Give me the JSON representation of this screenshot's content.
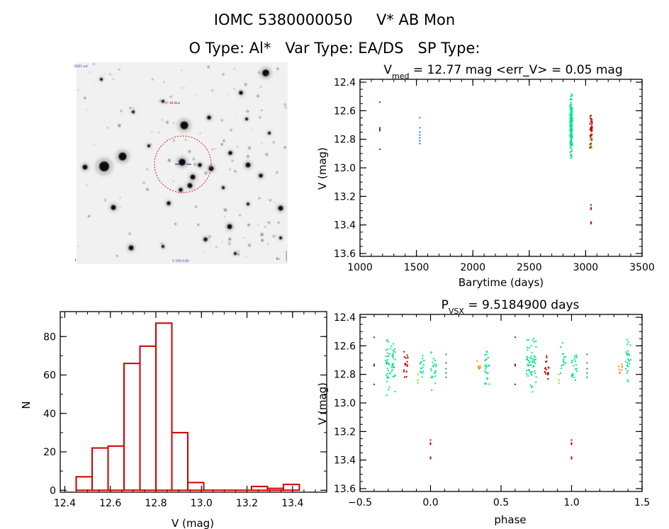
{
  "header": {
    "title": "IOMC 5380000050     V* AB Mon",
    "subtitle": "O Type: Al*   Var Type: EA/DS   SP Type:"
  },
  "finder": {
    "top_left_label": "DSS1 red",
    "target_label": "V* AB Mon",
    "bottom_left_label": "1'",
    "bottom_center_label": "1' FOV 6.65'",
    "bottom_right_label": "E←"
  },
  "colors": {
    "axis": "#000000",
    "histogram": "#cc0000",
    "finder_circle": "#dd0000",
    "season_1": "#6a0dad",
    "season_2": "#1f77d4",
    "season_3": "#00e68a",
    "season_4": "#c00000",
    "season_5": "#7fdc1e",
    "season_6": "#ff8c00"
  },
  "chart_data": [
    {
      "type": "scatter",
      "panel": "lightcurve",
      "title_main": "V",
      "title_sub": "med",
      "title_rest": " = 12.77 mag <err_V> = 0.05 mag",
      "xlabel": "Barytime (days)",
      "ylabel": "V (mag)",
      "xlim": [
        1000,
        3500
      ],
      "ylim": [
        13.62,
        12.38
      ],
      "xticks": [
        1000,
        1500,
        2000,
        2500,
        3000,
        3500
      ],
      "yticks": [
        12.4,
        12.6,
        12.8,
        13.0,
        13.2,
        13.4,
        13.6
      ],
      "series": [
        {
          "color_key": "season_1",
          "x": [
            1175,
            1175,
            1175,
            1175,
            1175
          ],
          "y": [
            12.54,
            12.72,
            12.73,
            12.74,
            12.87
          ]
        },
        {
          "color_key": "season_2",
          "x": [
            1530,
            1530,
            1530,
            1530,
            1530,
            1530,
            1530
          ],
          "y": [
            12.65,
            12.72,
            12.75,
            12.77,
            12.79,
            12.81,
            12.83
          ]
        },
        {
          "color_key": "season_3",
          "x_range": [
            2862,
            2882
          ],
          "y_range": [
            12.44,
            12.98
          ],
          "count": 160
        },
        {
          "color_key": "season_4",
          "x_range": [
            3038,
            3058
          ],
          "y_range": [
            12.58,
            12.89
          ],
          "count": 45,
          "x_extra": [
            3048,
            3048,
            3048,
            3048,
            3048
          ],
          "y_extra": [
            13.26,
            13.28,
            13.29,
            13.38,
            13.39
          ]
        },
        {
          "color_key": "season_5",
          "x": [
            3048,
            3050,
            3052
          ],
          "y": [
            12.8,
            12.84,
            12.86
          ]
        },
        {
          "color_key": "season_6",
          "x": [
            3047,
            3051
          ],
          "y": [
            12.76,
            12.79
          ]
        }
      ]
    },
    {
      "type": "bar",
      "panel": "histogram",
      "xlabel": "V (mag)",
      "ylabel": "N",
      "bin_edges": [
        12.45,
        12.52,
        12.59,
        12.66,
        12.73,
        12.8,
        12.87,
        12.94,
        13.01,
        13.08,
        13.15,
        13.22,
        13.29,
        13.36,
        13.43
      ],
      "values": [
        7,
        22,
        23,
        66,
        75,
        87,
        30,
        4,
        0,
        0,
        0,
        2,
        1,
        3
      ],
      "xlim": [
        12.38,
        13.55
      ],
      "ylim": [
        -1,
        93
      ],
      "xticks": [
        12.4,
        12.6,
        12.8,
        13.0,
        13.2,
        13.4
      ],
      "xtick_labels": [
        "12.4",
        "12.6",
        "12.8",
        "13.0",
        "13.2",
        "13.4"
      ],
      "yticks": [
        0,
        20,
        40,
        60,
        80
      ]
    },
    {
      "type": "scatter",
      "panel": "phased",
      "title_main": "P",
      "title_sub": "VSX",
      "title_rest": " = 9.5184900 days",
      "xlabel": "phase",
      "ylabel": "V (mag)",
      "xlim": [
        -0.5,
        1.5
      ],
      "ylim": [
        13.62,
        12.38
      ],
      "xticks": [
        -0.5,
        0.0,
        0.5,
        1.0,
        1.5
      ],
      "xtick_labels": [
        "−0.5",
        "0.0",
        "0.5",
        "1.0",
        "1.5"
      ],
      "yticks": [
        12.4,
        12.6,
        12.8,
        13.0,
        13.2,
        13.4,
        13.6
      ],
      "clusters": [
        {
          "color_key": "season_1",
          "x": -0.4,
          "y": [
            12.54,
            12.73,
            12.74,
            12.87
          ]
        },
        {
          "color_key": "season_3",
          "x_range": [
            -0.32,
            -0.25
          ],
          "y_range": [
            12.48,
            12.98
          ],
          "count": 60
        },
        {
          "color_key": "season_3",
          "x_range": [
            -0.08,
            -0.04
          ],
          "y_range": [
            12.52,
            12.9
          ],
          "count": 16
        },
        {
          "color_key": "season_3",
          "x_range": [
            0.0,
            0.04
          ],
          "y_range": [
            12.52,
            12.95
          ],
          "count": 22
        },
        {
          "color_key": "season_4",
          "x_range": [
            -0.19,
            -0.16
          ],
          "y_range": [
            12.58,
            12.88
          ],
          "count": 18
        },
        {
          "color_key": "season_4",
          "x": 0.0,
          "y": [
            13.26,
            13.28,
            13.29,
            13.38,
            13.39
          ]
        },
        {
          "color_key": "season_5",
          "x": -0.09,
          "y": [
            12.8,
            12.84,
            12.86
          ]
        },
        {
          "color_key": "season_2",
          "x": 0.11,
          "y": [
            12.66,
            12.72,
            12.76,
            12.79,
            12.82
          ]
        },
        {
          "color_key": "season_6",
          "x_range": [
            0.33,
            0.36
          ],
          "y_range": [
            12.68,
            12.82
          ],
          "count": 8
        },
        {
          "color_key": "season_3",
          "x_range": [
            0.38,
            0.42
          ],
          "y_range": [
            12.5,
            12.96
          ],
          "count": 26
        },
        {
          "color_key": "season_1",
          "x": 0.6,
          "y": [
            12.54,
            12.73,
            12.74,
            12.87
          ]
        },
        {
          "color_key": "season_3",
          "x_range": [
            0.68,
            0.75
          ],
          "y_range": [
            12.48,
            12.98
          ],
          "count": 60
        },
        {
          "color_key": "season_3",
          "x_range": [
            0.92,
            0.96
          ],
          "y_range": [
            12.52,
            12.9
          ],
          "count": 16
        },
        {
          "color_key": "season_3",
          "x_range": [
            1.0,
            1.04
          ],
          "y_range": [
            12.52,
            12.95
          ],
          "count": 22
        },
        {
          "color_key": "season_4",
          "x_range": [
            0.81,
            0.84
          ],
          "y_range": [
            12.58,
            12.88
          ],
          "count": 18
        },
        {
          "color_key": "season_4",
          "x": 1.0,
          "y": [
            13.26,
            13.28,
            13.29,
            13.38,
            13.39
          ]
        },
        {
          "color_key": "season_5",
          "x": 0.91,
          "y": [
            12.8,
            12.84,
            12.86
          ]
        },
        {
          "color_key": "season_2",
          "x": 1.11,
          "y": [
            12.66,
            12.72,
            12.76,
            12.79,
            12.82
          ]
        },
        {
          "color_key": "season_6",
          "x_range": [
            1.33,
            1.36
          ],
          "y_range": [
            12.68,
            12.82
          ],
          "count": 8
        },
        {
          "color_key": "season_3",
          "x_range": [
            1.38,
            1.42
          ],
          "y_range": [
            12.5,
            12.96
          ],
          "count": 26
        }
      ]
    }
  ]
}
